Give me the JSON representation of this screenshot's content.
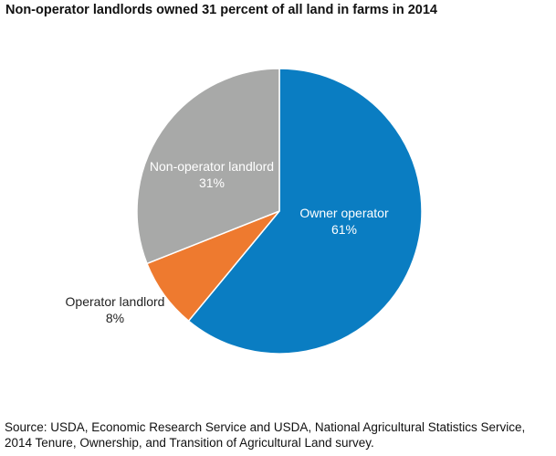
{
  "chart_data": {
    "type": "pie",
    "title": "Non-operator landlords owned 31 percent of all land in farms in 2014",
    "slices": [
      {
        "label": "Owner operator",
        "value": 61,
        "value_label": "61%",
        "color": "#0a7dc2",
        "label_color": "#ffffff",
        "label_placement": "inside"
      },
      {
        "label": "Operator landlord",
        "value": 8,
        "value_label": "8%",
        "color": "#ee7a2f",
        "label_color": "#222222",
        "label_placement": "outside"
      },
      {
        "label": "Non-operator landlord",
        "value": 31,
        "value_label": "31%",
        "color": "#a8a9a8",
        "label_color": "#ffffff",
        "label_placement": "inside"
      }
    ],
    "start": "12 o'clock",
    "direction": "clockwise"
  },
  "source": {
    "line1": "Source: USDA, Economic Research Service and USDA, National Agricultural Statistics Service,",
    "line2": "2014 Tenure, Ownership, and Transition of Agricultural Land survey."
  }
}
